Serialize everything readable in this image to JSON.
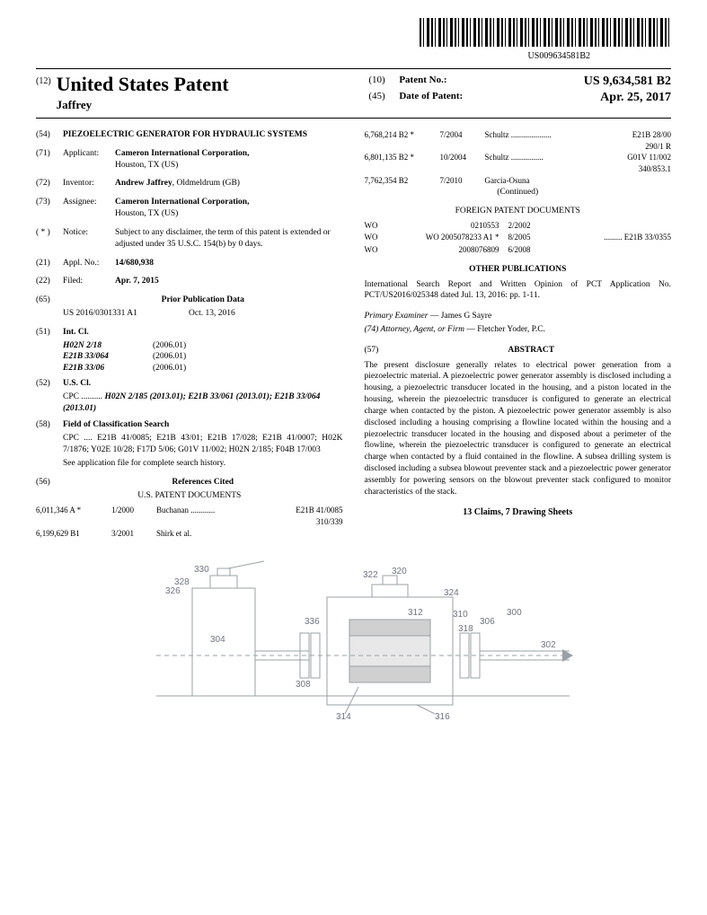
{
  "barcode_label": "US009634581B2",
  "header": {
    "doc_kind_code": "(12)",
    "main_title": "United States Patent",
    "inventor_last": "Jaffrey",
    "r1_code": "(10)",
    "r1_label": "Patent No.:",
    "r1_val": "US 9,634,581 B2",
    "r2_code": "(45)",
    "r2_label": "Date of Patent:",
    "r2_val": "Apr. 25, 2017"
  },
  "left": {
    "f54_code": "(54)",
    "f54_title": "PIEZOELECTRIC GENERATOR FOR HYDRAULIC SYSTEMS",
    "f71_code": "(71)",
    "f71_label": "Applicant:",
    "f71_val": "Cameron International Corporation,",
    "f71_loc": "Houston, TX (US)",
    "f72_code": "(72)",
    "f72_label": "Inventor:",
    "f72_val": "Andrew Jaffrey",
    "f72_loc": ", Oldmeldrum (GB)",
    "f73_code": "(73)",
    "f73_label": "Assignee:",
    "f73_val": "Cameron International Corporation,",
    "f73_loc": "Houston, TX (US)",
    "notice_code": "( * )",
    "notice_label": "Notice:",
    "notice_text": "Subject to any disclaimer, the term of this patent is extended or adjusted under 35 U.S.C. 154(b) by 0 days.",
    "f21_code": "(21)",
    "f21_label": "Appl. No.:",
    "f21_val": "14/680,938",
    "f22_code": "(22)",
    "f22_label": "Filed:",
    "f22_val": "Apr. 7, 2015",
    "f65_code": "(65)",
    "f65_title": "Prior Publication Data",
    "f65_pub": "US 2016/0301331 A1",
    "f65_date": "Oct. 13, 2016",
    "f51_code": "(51)",
    "f51_label": "Int. Cl.",
    "intcl": [
      {
        "cls": "H02N 2/18",
        "ver": "(2006.01)"
      },
      {
        "cls": "E21B 33/064",
        "ver": "(2006.01)"
      },
      {
        "cls": "E21B 33/06",
        "ver": "(2006.01)"
      }
    ],
    "f52_code": "(52)",
    "f52_label": "U.S. Cl.",
    "f52_cpc_label": "CPC ..........",
    "f52_cpc": "H02N 2/185 (2013.01); E21B 33/061 (2013.01); E21B 33/064 (2013.01)",
    "f58_code": "(58)",
    "f58_label": "Field of Classification Search",
    "f58_line1": "CPC .... E21B 41/0085; E21B 43/01; E21B 17/028; E21B 41/0007; H02K 7/1876; Y02E 10/28; F17D 5/06; G01V 11/002; H02N 2/185; F04B 17/003",
    "f58_note": "See application file for complete search history.",
    "f56_code": "(56)",
    "f56_title": "References Cited",
    "us_docs_title": "U.S. PATENT DOCUMENTS",
    "us_docs": [
      {
        "num": "6,011,346 A *",
        "date": "1/2000",
        "name": "Buchanan ............",
        "cls": "E21B 41/0085",
        "sub": "310/339"
      },
      {
        "num": "6,199,629 B1",
        "date": "3/2001",
        "name": "Shirk et al.",
        "cls": "",
        "sub": ""
      }
    ]
  },
  "right": {
    "us_docs_cont": [
      {
        "num": "6,768,214 B2 *",
        "date": "7/2004",
        "name": "Schultz ....................",
        "cls": "E21B 28/00",
        "sub": "290/1 R"
      },
      {
        "num": "6,801,135 B2 *",
        "date": "10/2004",
        "name": "Schultz ................",
        "cls": "G01V 11/002",
        "sub": "340/853.1"
      },
      {
        "num": "7,762,354 B2",
        "date": "7/2010",
        "name": "Garcia-Osuna",
        "cls": "",
        "sub": ""
      }
    ],
    "continued": "(Continued)",
    "foreign_title": "FOREIGN PATENT DOCUMENTS",
    "foreign": [
      {
        "cc": "WO",
        "num": "0210553",
        "date": "2/2002",
        "cls": ""
      },
      {
        "cc": "WO",
        "num": "WO 2005078233 A1 *",
        "date": "8/2005",
        "cls": "......... E21B 33/0355"
      },
      {
        "cc": "WO",
        "num": "2008076809",
        "date": "6/2008",
        "cls": ""
      }
    ],
    "other_title": "OTHER PUBLICATIONS",
    "other_text": "International Search Report and Written Opinion of PCT Application No. PCT/US2016/025348 dated Jul. 13, 2016: pp. 1-11.",
    "examiner_label": "Primary Examiner",
    "examiner": " — James G Sayre",
    "attorney_label": "(74) Attorney, Agent, or Firm",
    "attorney": " — Fletcher Yoder, P.C.",
    "abs_code": "(57)",
    "abs_title": "ABSTRACT",
    "abstract": "The present disclosure generally relates to electrical power generation from a piezoelectric material. A piezoelectric power generator assembly is disclosed including a housing, a piezoelectric transducer located in the housing, and a piston located in the housing, wherein the piezoelectric transducer is configured to generate an electrical charge when contacted by the piston. A piezoelectric power generator assembly is also disclosed including a housing comprising a flowline located within the housing and a piezoelectric transducer located in the housing and disposed about a perimeter of the flowline, wherein the piezoelectric transducer is configured to generate an electrical charge when contacted by a fluid contained in the flowline. A subsea drilling system is disclosed including a subsea blowout preventer stack and a piezoelectric power generator assembly for powering sensors on the blowout preventer stack configured to monitor characteristics of the stack.",
    "claims": "13 Claims, 7 Drawing Sheets"
  },
  "figure": {
    "labels": [
      "330",
      "328",
      "326",
      "304",
      "308",
      "336",
      "314",
      "322",
      "320",
      "312",
      "324",
      "310",
      "318",
      "306",
      "300",
      "302",
      "316"
    ],
    "stroke": "#9aa0a6",
    "label_color": "#707580"
  }
}
